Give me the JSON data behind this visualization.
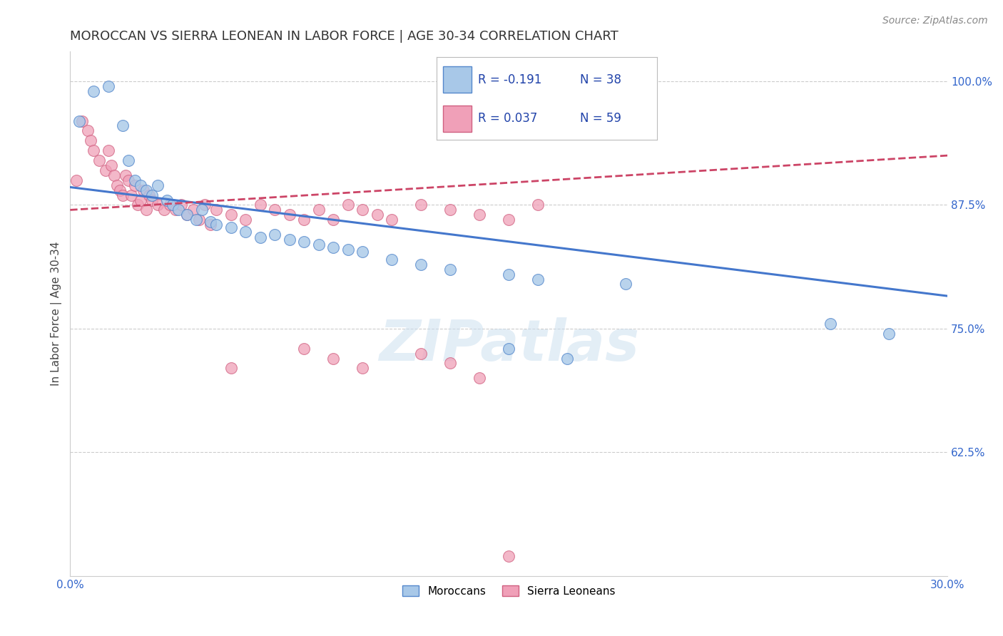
{
  "title": "MOROCCAN VS SIERRA LEONEAN IN LABOR FORCE | AGE 30-34 CORRELATION CHART",
  "source": "Source: ZipAtlas.com",
  "ylabel": "In Labor Force | Age 30-34",
  "x_min": 0.0,
  "x_max": 0.3,
  "y_min": 0.5,
  "y_max": 1.03,
  "x_ticks": [
    0.0,
    0.05,
    0.1,
    0.15,
    0.2,
    0.25,
    0.3
  ],
  "x_tick_labels": [
    "0.0%",
    "",
    "",
    "",
    "",
    "",
    "30.0%"
  ],
  "y_ticks": [
    0.625,
    0.75,
    0.875,
    1.0
  ],
  "y_tick_labels": [
    "62.5%",
    "75.0%",
    "87.5%",
    "100.0%"
  ],
  "watermark": "ZIPatlas",
  "moroccan_color": "#a8c8e8",
  "moroccan_edge": "#5588cc",
  "sierra_color": "#f0a0b8",
  "sierra_edge": "#d06080",
  "trend_moroccan_color": "#4477cc",
  "trend_sierra_color": "#cc4466",
  "moroccan_x": [
    0.003,
    0.008,
    0.013,
    0.018,
    0.02,
    0.022,
    0.024,
    0.026,
    0.028,
    0.03,
    0.033,
    0.035,
    0.037,
    0.04,
    0.043,
    0.045,
    0.048,
    0.05,
    0.055,
    0.06,
    0.065,
    0.07,
    0.075,
    0.08,
    0.085,
    0.09,
    0.095,
    0.1,
    0.11,
    0.12,
    0.13,
    0.15,
    0.16,
    0.19,
    0.26,
    0.28,
    0.15,
    0.17
  ],
  "moroccan_y": [
    0.96,
    0.99,
    0.995,
    0.955,
    0.92,
    0.9,
    0.895,
    0.89,
    0.885,
    0.895,
    0.88,
    0.875,
    0.87,
    0.865,
    0.86,
    0.87,
    0.858,
    0.855,
    0.852,
    0.848,
    0.842,
    0.845,
    0.84,
    0.838,
    0.835,
    0.832,
    0.83,
    0.828,
    0.82,
    0.815,
    0.81,
    0.805,
    0.8,
    0.795,
    0.755,
    0.745,
    0.73,
    0.72
  ],
  "sierra_x": [
    0.002,
    0.004,
    0.006,
    0.007,
    0.008,
    0.01,
    0.012,
    0.013,
    0.014,
    0.015,
    0.016,
    0.017,
    0.018,
    0.019,
    0.02,
    0.021,
    0.022,
    0.023,
    0.024,
    0.025,
    0.026,
    0.027,
    0.028,
    0.03,
    0.032,
    0.034,
    0.036,
    0.038,
    0.04,
    0.042,
    0.044,
    0.046,
    0.048,
    0.05,
    0.055,
    0.06,
    0.065,
    0.07,
    0.075,
    0.08,
    0.085,
    0.09,
    0.095,
    0.1,
    0.105,
    0.11,
    0.12,
    0.13,
    0.14,
    0.15,
    0.16,
    0.08,
    0.09,
    0.1,
    0.055,
    0.12,
    0.13,
    0.14,
    0.15
  ],
  "sierra_y": [
    0.9,
    0.96,
    0.95,
    0.94,
    0.93,
    0.92,
    0.91,
    0.93,
    0.915,
    0.905,
    0.895,
    0.89,
    0.885,
    0.905,
    0.9,
    0.885,
    0.895,
    0.875,
    0.88,
    0.89,
    0.87,
    0.885,
    0.88,
    0.875,
    0.87,
    0.875,
    0.87,
    0.875,
    0.865,
    0.87,
    0.86,
    0.875,
    0.855,
    0.87,
    0.865,
    0.86,
    0.875,
    0.87,
    0.865,
    0.86,
    0.87,
    0.86,
    0.875,
    0.87,
    0.865,
    0.86,
    0.875,
    0.87,
    0.865,
    0.86,
    0.875,
    0.73,
    0.72,
    0.71,
    0.71,
    0.725,
    0.715,
    0.7,
    0.52
  ],
  "moroccan_trendline_x": [
    0.0,
    0.3
  ],
  "moroccan_trendline_y": [
    0.893,
    0.783
  ],
  "sierra_trendline_x": [
    0.0,
    0.3
  ],
  "sierra_trendline_y": [
    0.87,
    0.925
  ]
}
